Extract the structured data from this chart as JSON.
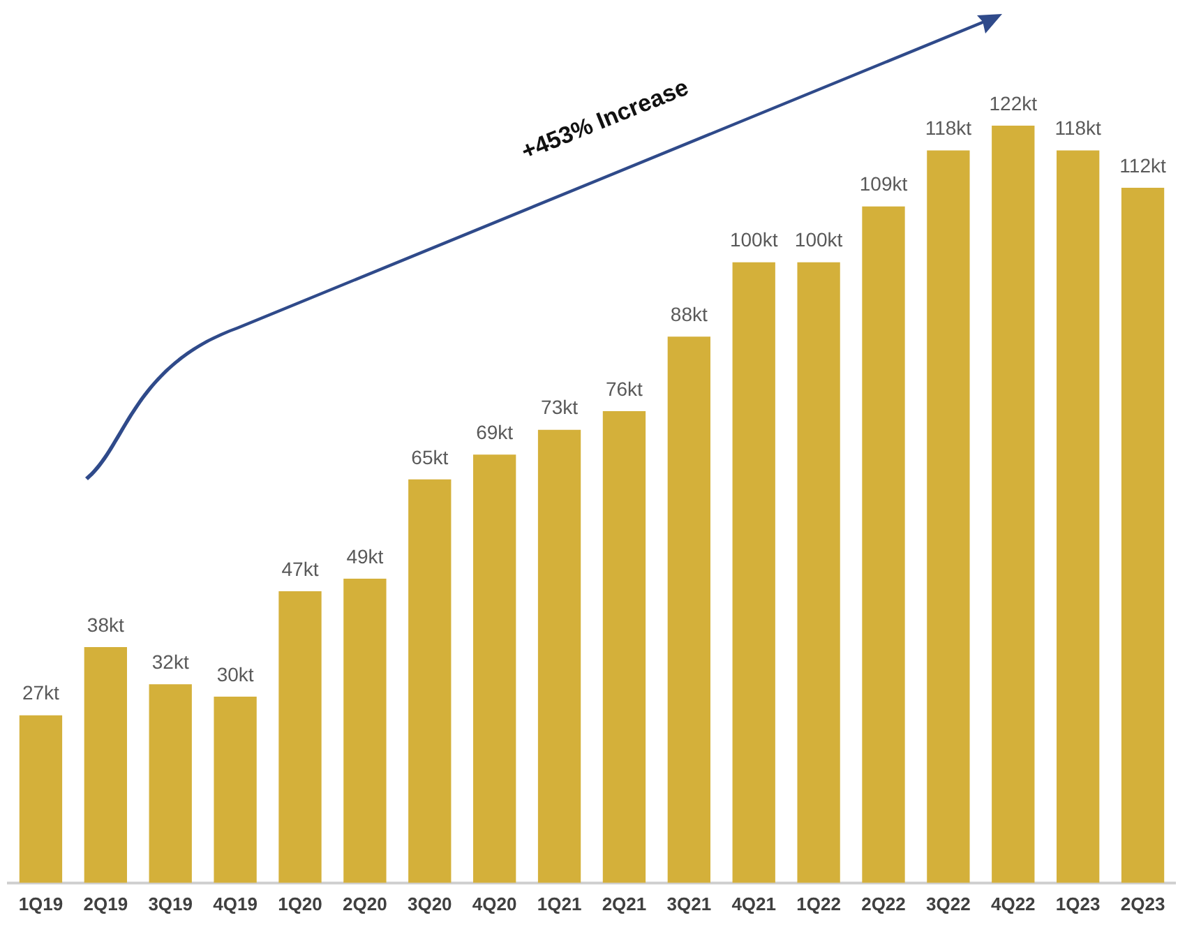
{
  "chart_data": {
    "type": "bar",
    "categories": [
      "1Q19",
      "2Q19",
      "3Q19",
      "4Q19",
      "1Q20",
      "2Q20",
      "3Q20",
      "4Q20",
      "1Q21",
      "2Q21",
      "3Q21",
      "4Q21",
      "1Q22",
      "2Q22",
      "3Q22",
      "4Q22",
      "1Q23",
      "2Q23"
    ],
    "values": [
      27,
      38,
      32,
      30,
      47,
      49,
      65,
      69,
      73,
      76,
      88,
      100,
      100,
      109,
      118,
      122,
      118,
      112
    ],
    "value_labels": [
      "27kt",
      "38kt",
      "32kt",
      "30kt",
      "47kt",
      "49kt",
      "65kt",
      "69kt",
      "73kt",
      "76kt",
      "88kt",
      "100kt",
      "100kt",
      "109kt",
      "118kt",
      "122kt",
      "118kt",
      "112kt"
    ],
    "color": "#d4b03a",
    "grid": false,
    "legend": false,
    "annotations": [
      "+453% Increase"
    ]
  }
}
